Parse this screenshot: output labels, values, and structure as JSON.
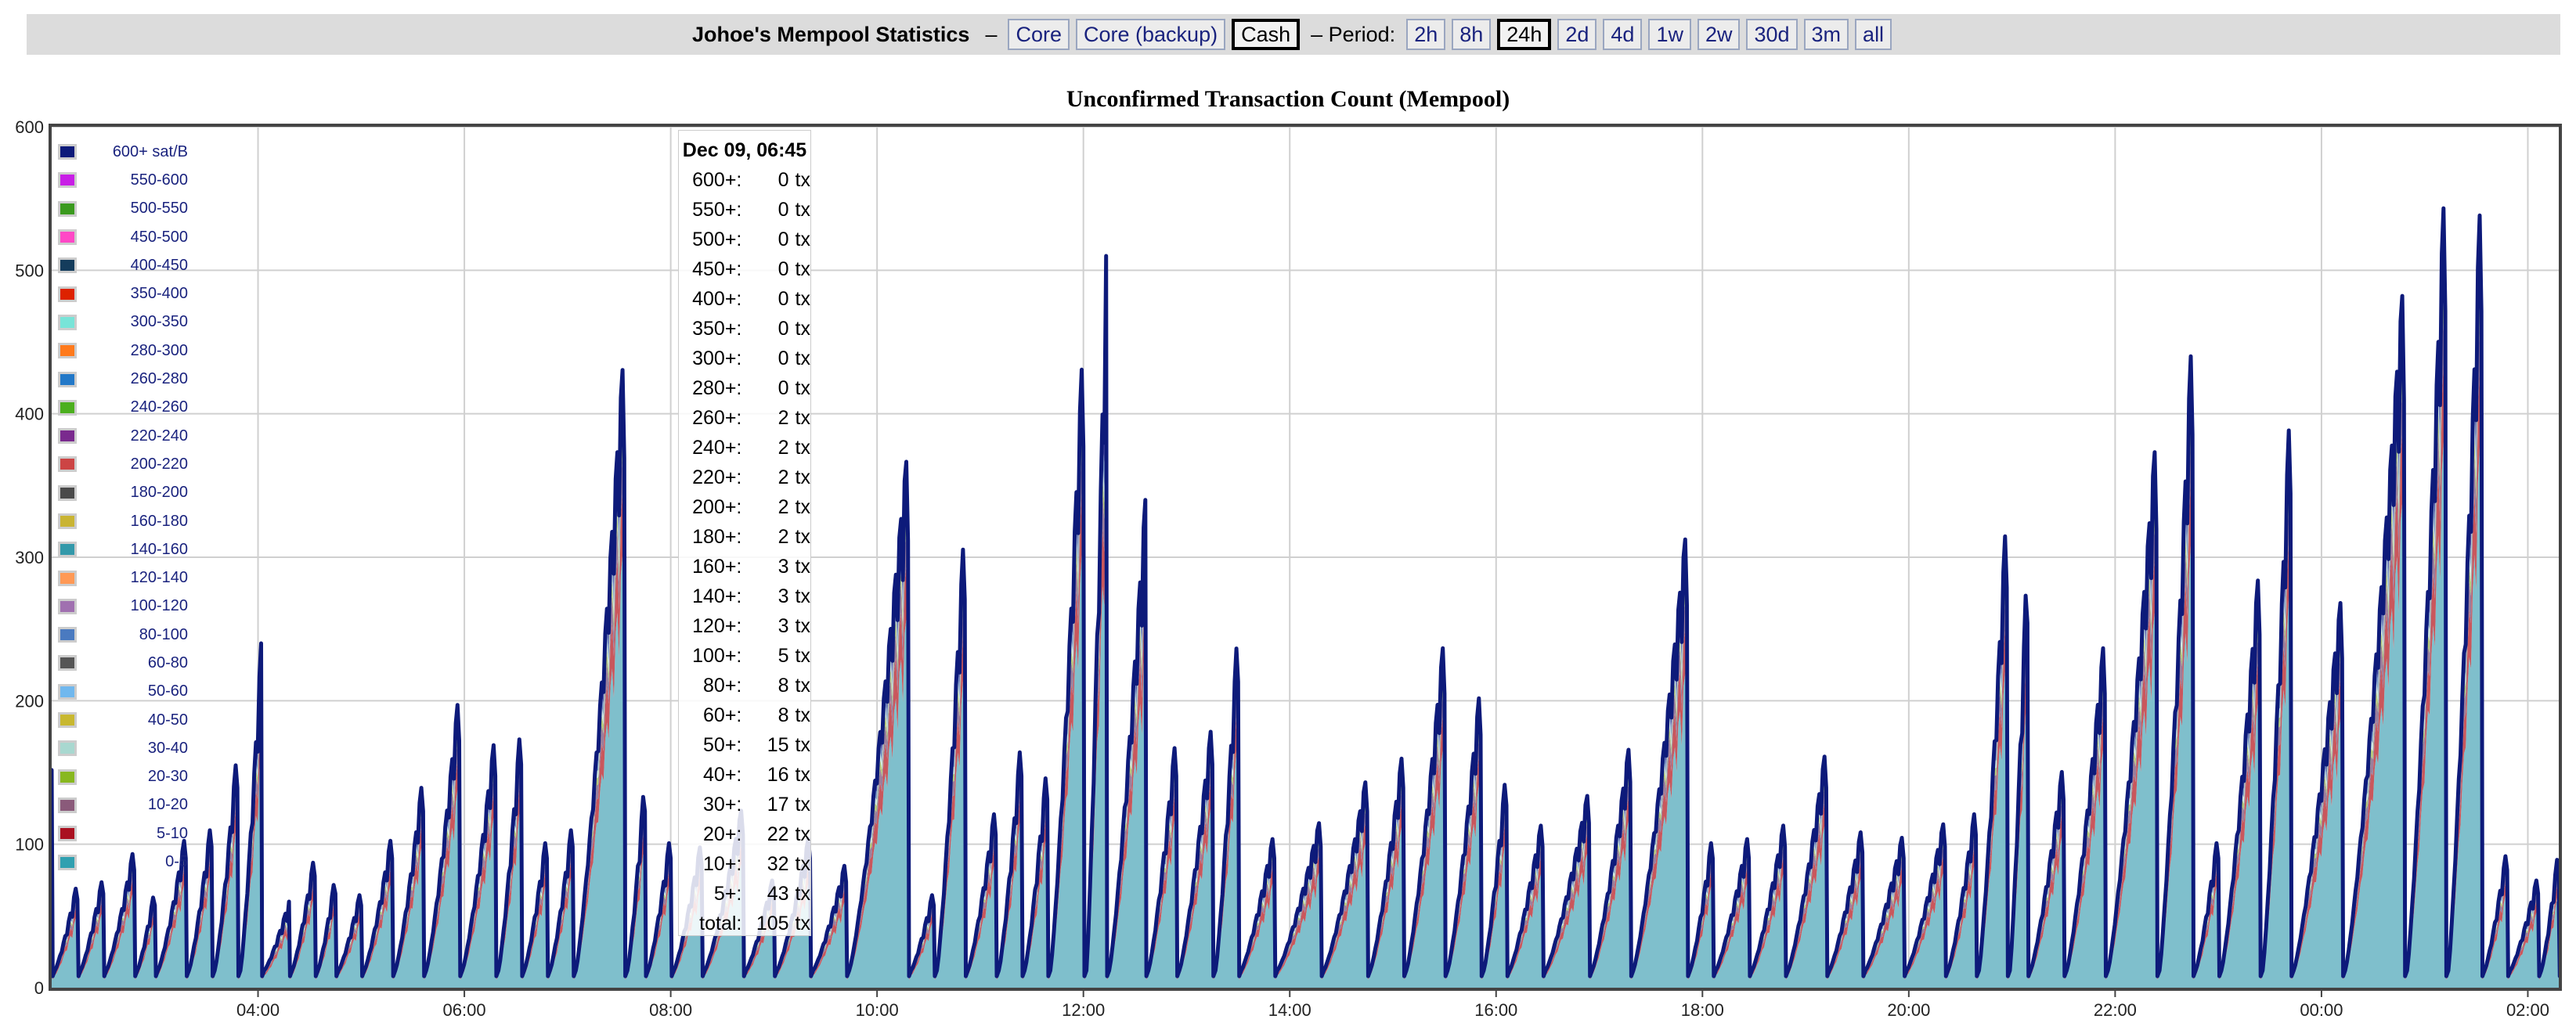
{
  "nav": {
    "title": "Johoe's Mempool Statistics",
    "dash": "–",
    "sources": [
      {
        "label": "Core",
        "active": false
      },
      {
        "label": "Core (backup)",
        "active": false
      },
      {
        "label": "Cash",
        "active": true
      }
    ],
    "period_label": "– Period:",
    "periods": [
      {
        "label": "2h",
        "active": false
      },
      {
        "label": "8h",
        "active": false
      },
      {
        "label": "24h",
        "active": true
      },
      {
        "label": "2d",
        "active": false
      },
      {
        "label": "4d",
        "active": false
      },
      {
        "label": "1w",
        "active": false
      },
      {
        "label": "2w",
        "active": false
      },
      {
        "label": "30d",
        "active": false
      },
      {
        "label": "3m",
        "active": false
      },
      {
        "label": "all",
        "active": false
      }
    ]
  },
  "tooltip": {
    "title": "Dec 09, 06:45",
    "unit": "tx",
    "rows": [
      {
        "k": "600+:",
        "v": "0"
      },
      {
        "k": "550+:",
        "v": "0"
      },
      {
        "k": "500+:",
        "v": "0"
      },
      {
        "k": "450+:",
        "v": "0"
      },
      {
        "k": "400+:",
        "v": "0"
      },
      {
        "k": "350+:",
        "v": "0"
      },
      {
        "k": "300+:",
        "v": "0"
      },
      {
        "k": "280+:",
        "v": "0"
      },
      {
        "k": "260+:",
        "v": "2"
      },
      {
        "k": "240+:",
        "v": "2"
      },
      {
        "k": "220+:",
        "v": "2"
      },
      {
        "k": "200+:",
        "v": "2"
      },
      {
        "k": "180+:",
        "v": "2"
      },
      {
        "k": "160+:",
        "v": "3"
      },
      {
        "k": "140+:",
        "v": "3"
      },
      {
        "k": "120+:",
        "v": "3"
      },
      {
        "k": "100+:",
        "v": "5"
      },
      {
        "k": "80+:",
        "v": "8"
      },
      {
        "k": "60+:",
        "v": "8"
      },
      {
        "k": "50+:",
        "v": "15"
      },
      {
        "k": "40+:",
        "v": "16"
      },
      {
        "k": "30+:",
        "v": "17"
      },
      {
        "k": "20+:",
        "v": "22"
      },
      {
        "k": "10+:",
        "v": "32"
      },
      {
        "k": "5+:",
        "v": "43"
      },
      {
        "k": "total:",
        "v": "105"
      }
    ]
  },
  "chart_data": {
    "type": "area",
    "stacked": true,
    "title": "Unconfirmed Transaction Count (Mempool)",
    "xlabel": "",
    "ylabel": "",
    "ylim": [
      0,
      600
    ],
    "yticks": [
      0,
      100,
      200,
      300,
      400,
      500,
      600
    ],
    "xlim": [
      "02:00",
      "02:15+1d"
    ],
    "xticks": [
      "04:00",
      "06:00",
      "08:00",
      "10:00",
      "12:00",
      "14:00",
      "16:00",
      "18:00",
      "20:00",
      "22:00",
      "00:00",
      "02:00"
    ],
    "xtick_hours": [
      4,
      6,
      8,
      10,
      12,
      14,
      16,
      18,
      20,
      22,
      24,
      26
    ],
    "x_range_hours": [
      2.0,
      26.3
    ],
    "grid": true,
    "legend_position": "top-left inside",
    "legend": [
      {
        "label": "600+ sat/B",
        "color": "#0d1a7a"
      },
      {
        "label": "550-600",
        "color": "#c81ee6"
      },
      {
        "label": "500-550",
        "color": "#3a9a1e"
      },
      {
        "label": "450-500",
        "color": "#ff48c6"
      },
      {
        "label": "400-450",
        "color": "#143c5c"
      },
      {
        "label": "350-400",
        "color": "#dd2200"
      },
      {
        "label": "300-350",
        "color": "#78e4d8"
      },
      {
        "label": "280-300",
        "color": "#ff7a1c"
      },
      {
        "label": "260-280",
        "color": "#2278c8"
      },
      {
        "label": "240-260",
        "color": "#4caf1e"
      },
      {
        "label": "220-240",
        "color": "#7a2a8e"
      },
      {
        "label": "200-220",
        "color": "#cc4444"
      },
      {
        "label": "180-200",
        "color": "#4a4a4a"
      },
      {
        "label": "160-180",
        "color": "#c9b433"
      },
      {
        "label": "140-160",
        "color": "#3399aa"
      },
      {
        "label": "120-140",
        "color": "#ff9955"
      },
      {
        "label": "100-120",
        "color": "#a070b0"
      },
      {
        "label": "80-100",
        "color": "#4a7ac0"
      },
      {
        "label": "60-80",
        "color": "#555555"
      },
      {
        "label": "50-60",
        "color": "#70b8ee"
      },
      {
        "label": "40-50",
        "color": "#c8b830"
      },
      {
        "label": "30-40",
        "color": "#a8d8d0"
      },
      {
        "label": "20-30",
        "color": "#88b820"
      },
      {
        "label": "10-20",
        "color": "#8a5a7a"
      },
      {
        "label": "5-10",
        "color": "#aa1020"
      },
      {
        "label": "0-5",
        "color": "#30a0b0"
      }
    ],
    "peaks": [
      {
        "t": 2.0,
        "v": 185
      },
      {
        "t": 2.25,
        "v": 75
      },
      {
        "t": 2.5,
        "v": 80
      },
      {
        "t": 2.8,
        "v": 100
      },
      {
        "t": 3.0,
        "v": 70
      },
      {
        "t": 3.3,
        "v": 110
      },
      {
        "t": 3.55,
        "v": 120
      },
      {
        "t": 3.8,
        "v": 170
      },
      {
        "t": 4.03,
        "v": 240
      },
      {
        "t": 4.3,
        "v": 60
      },
      {
        "t": 4.55,
        "v": 95
      },
      {
        "t": 4.75,
        "v": 80
      },
      {
        "t": 5.0,
        "v": 70
      },
      {
        "t": 5.3,
        "v": 110
      },
      {
        "t": 5.6,
        "v": 150
      },
      {
        "t": 5.95,
        "v": 210
      },
      {
        "t": 6.3,
        "v": 180
      },
      {
        "t": 6.55,
        "v": 190
      },
      {
        "t": 6.8,
        "v": 110
      },
      {
        "t": 7.05,
        "v": 120
      },
      {
        "t": 7.55,
        "v": 450
      },
      {
        "t": 7.75,
        "v": 150
      },
      {
        "t": 8.0,
        "v": 110
      },
      {
        "t": 8.3,
        "v": 105
      },
      {
        "t": 8.7,
        "v": 130
      },
      {
        "t": 9.0,
        "v": 80
      },
      {
        "t": 9.35,
        "v": 110
      },
      {
        "t": 9.7,
        "v": 90
      },
      {
        "t": 10.3,
        "v": 380
      },
      {
        "t": 10.55,
        "v": 70
      },
      {
        "t": 10.85,
        "v": 330
      },
      {
        "t": 11.15,
        "v": 130
      },
      {
        "t": 11.4,
        "v": 180
      },
      {
        "t": 11.65,
        "v": 160
      },
      {
        "t": 12.0,
        "v": 460
      },
      {
        "t": 12.22,
        "v": 510
      },
      {
        "t": 12.6,
        "v": 340
      },
      {
        "t": 12.9,
        "v": 180
      },
      {
        "t": 13.25,
        "v": 190
      },
      {
        "t": 13.5,
        "v": 260
      },
      {
        "t": 13.85,
        "v": 110
      },
      {
        "t": 14.3,
        "v": 120
      },
      {
        "t": 14.75,
        "v": 150
      },
      {
        "t": 15.1,
        "v": 170
      },
      {
        "t": 15.5,
        "v": 250
      },
      {
        "t": 15.85,
        "v": 215
      },
      {
        "t": 16.1,
        "v": 155
      },
      {
        "t": 16.45,
        "v": 120
      },
      {
        "t": 16.9,
        "v": 140
      },
      {
        "t": 17.3,
        "v": 175
      },
      {
        "t": 17.85,
        "v": 325
      },
      {
        "t": 18.1,
        "v": 110
      },
      {
        "t": 18.45,
        "v": 110
      },
      {
        "t": 18.8,
        "v": 120
      },
      {
        "t": 19.2,
        "v": 170
      },
      {
        "t": 19.55,
        "v": 115
      },
      {
        "t": 19.95,
        "v": 110
      },
      {
        "t": 20.35,
        "v": 120
      },
      {
        "t": 20.65,
        "v": 130
      },
      {
        "t": 20.95,
        "v": 340
      },
      {
        "t": 21.15,
        "v": 310
      },
      {
        "t": 21.5,
        "v": 160
      },
      {
        "t": 21.9,
        "v": 250
      },
      {
        "t": 22.4,
        "v": 390
      },
      {
        "t": 22.75,
        "v": 470
      },
      {
        "t": 23.0,
        "v": 110
      },
      {
        "t": 23.4,
        "v": 300
      },
      {
        "t": 23.7,
        "v": 420
      },
      {
        "t": 24.2,
        "v": 280
      },
      {
        "t": 24.8,
        "v": 500
      },
      {
        "t": 25.2,
        "v": 575
      },
      {
        "t": 25.55,
        "v": 575
      },
      {
        "t": 25.8,
        "v": 100
      },
      {
        "t": 26.1,
        "v": 80
      },
      {
        "t": 26.3,
        "v": 100
      }
    ]
  }
}
